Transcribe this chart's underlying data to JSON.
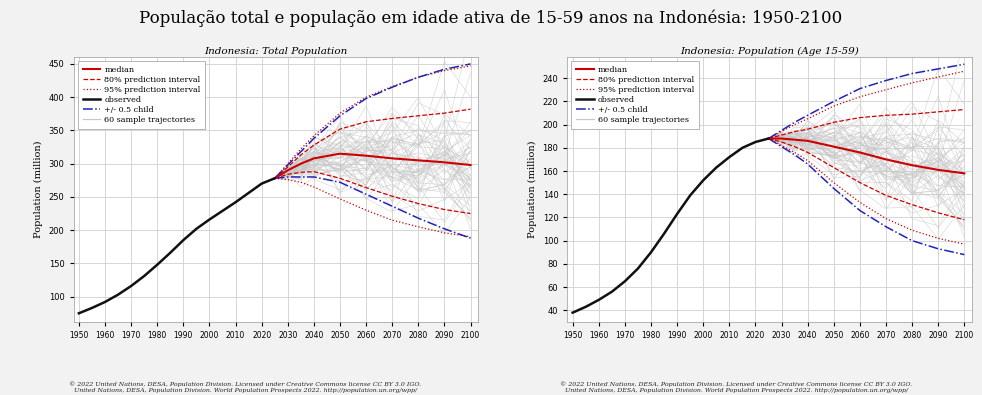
{
  "title": "População total e população em idade ativa de 15-59 anos na Indonésia: 1950-2100",
  "title_fontsize": 12,
  "subplot1_title": "Indonesia: Total Population",
  "subplot2_title": "Indonesia: Population (Age 15-59)",
  "ylabel": "Population (million)",
  "xlabel_ticks": [
    1950,
    1960,
    1970,
    1980,
    1990,
    2000,
    2010,
    2020,
    2030,
    2040,
    2050,
    2060,
    2070,
    2080,
    2090,
    2100
  ],
  "footnote_line1": "© 2022 United Nations, DESA, Population Division. Licensed under Creative Commons license CC BY 3.0 IGO.",
  "footnote_line2": "United Nations, DESA, Population Division. World Population Prospects 2022. http://population.un.org/wpp/",
  "legend_labels": [
    "median",
    "80% prediction interval",
    "95% prediction interval",
    "observed",
    "+/- 0.5 child",
    "60 sample trajectories"
  ],
  "bg_color": "#f2f2f2",
  "plot_bg_color": "#ffffff",
  "grid_color": "#d0d0d0",
  "left_observed_x": [
    1950,
    1955,
    1960,
    1965,
    1970,
    1975,
    1980,
    1985,
    1990,
    1995,
    2000,
    2005,
    2010,
    2015,
    2020,
    2025
  ],
  "left_observed_y": [
    75,
    83,
    92,
    103,
    116,
    131,
    148,
    166,
    185,
    202,
    216,
    229,
    242,
    256,
    270,
    278
  ],
  "left_median_x": [
    2025,
    2030,
    2035,
    2040,
    2050,
    2060,
    2070,
    2080,
    2090,
    2100
  ],
  "left_median_y": [
    278,
    290,
    300,
    308,
    315,
    312,
    308,
    305,
    302,
    298
  ],
  "left_pi80_upper_x": [
    2025,
    2030,
    2035,
    2040,
    2050,
    2060,
    2070,
    2080,
    2090,
    2100
  ],
  "left_pi80_upper_y": [
    278,
    295,
    313,
    328,
    352,
    363,
    368,
    372,
    376,
    382
  ],
  "left_pi80_lower_x": [
    2025,
    2030,
    2035,
    2040,
    2050,
    2060,
    2070,
    2080,
    2090,
    2100
  ],
  "left_pi80_lower_y": [
    278,
    284,
    287,
    288,
    278,
    264,
    251,
    240,
    231,
    225
  ],
  "left_pi95_upper_x": [
    2025,
    2030,
    2035,
    2040,
    2050,
    2060,
    2070,
    2080,
    2090,
    2100
  ],
  "left_pi95_upper_y": [
    278,
    300,
    322,
    342,
    376,
    400,
    416,
    430,
    440,
    447
  ],
  "left_pi95_lower_x": [
    2025,
    2030,
    2035,
    2040,
    2050,
    2060,
    2070,
    2080,
    2090,
    2100
  ],
  "left_pi95_lower_y": [
    278,
    276,
    272,
    265,
    247,
    230,
    215,
    205,
    196,
    190
  ],
  "left_child05_upper_x": [
    2025,
    2030,
    2035,
    2040,
    2050,
    2060,
    2070,
    2080,
    2090,
    2100
  ],
  "left_child05_upper_y": [
    278,
    298,
    318,
    338,
    372,
    398,
    415,
    430,
    442,
    450
  ],
  "left_child05_lower_x": [
    2025,
    2030,
    2035,
    2040,
    2050,
    2060,
    2070,
    2080,
    2090,
    2100
  ],
  "left_child05_lower_y": [
    278,
    280,
    280,
    280,
    272,
    254,
    236,
    218,
    202,
    188
  ],
  "left_ylim": [
    62,
    460
  ],
  "left_yticks": [
    100,
    150,
    200,
    250,
    300,
    350,
    400,
    450
  ],
  "right_observed_x": [
    1950,
    1955,
    1960,
    1965,
    1970,
    1975,
    1980,
    1985,
    1990,
    1995,
    2000,
    2005,
    2010,
    2015,
    2020,
    2025
  ],
  "right_observed_y": [
    38,
    43,
    49,
    56,
    65,
    76,
    90,
    106,
    123,
    139,
    152,
    163,
    172,
    180,
    185,
    188
  ],
  "right_median_x": [
    2025,
    2030,
    2035,
    2040,
    2050,
    2060,
    2070,
    2080,
    2090,
    2100
  ],
  "right_median_y": [
    188,
    188,
    187,
    186,
    181,
    176,
    170,
    165,
    161,
    158
  ],
  "right_pi80_upper_x": [
    2025,
    2030,
    2035,
    2040,
    2050,
    2060,
    2070,
    2080,
    2090,
    2100
  ],
  "right_pi80_upper_y": [
    188,
    191,
    194,
    196,
    202,
    206,
    208,
    209,
    211,
    213
  ],
  "right_pi80_lower_x": [
    2025,
    2030,
    2035,
    2040,
    2050,
    2060,
    2070,
    2080,
    2090,
    2100
  ],
  "right_pi80_lower_y": [
    188,
    185,
    181,
    176,
    163,
    150,
    139,
    131,
    124,
    118
  ],
  "right_pi95_upper_x": [
    2025,
    2030,
    2035,
    2040,
    2050,
    2060,
    2070,
    2080,
    2090,
    2100
  ],
  "right_pi95_upper_y": [
    188,
    194,
    200,
    205,
    216,
    224,
    230,
    236,
    241,
    246
  ],
  "right_pi95_lower_x": [
    2025,
    2030,
    2035,
    2040,
    2050,
    2060,
    2070,
    2080,
    2090,
    2100
  ],
  "right_pi95_lower_y": [
    188,
    182,
    176,
    169,
    150,
    133,
    119,
    109,
    102,
    97
  ],
  "right_child05_upper_x": [
    2025,
    2030,
    2035,
    2040,
    2050,
    2060,
    2070,
    2080,
    2090,
    2100
  ],
  "right_child05_upper_y": [
    188,
    195,
    202,
    208,
    220,
    231,
    238,
    244,
    248,
    252
  ],
  "right_child05_lower_x": [
    2025,
    2030,
    2035,
    2040,
    2050,
    2060,
    2070,
    2080,
    2090,
    2100
  ],
  "right_child05_lower_y": [
    188,
    181,
    174,
    166,
    145,
    126,
    112,
    100,
    93,
    88
  ],
  "right_ylim": [
    30,
    258
  ],
  "right_yticks": [
    40,
    60,
    80,
    100,
    120,
    140,
    160,
    180,
    200,
    220,
    240
  ],
  "color_median": "#cc0000",
  "color_pi80": "#cc0000",
  "color_pi95": "#cc0000",
  "color_observed": "#111111",
  "color_child05": "#2222bb",
  "color_sample": "#c8c8c8",
  "n_samples": 60,
  "seed": 42
}
